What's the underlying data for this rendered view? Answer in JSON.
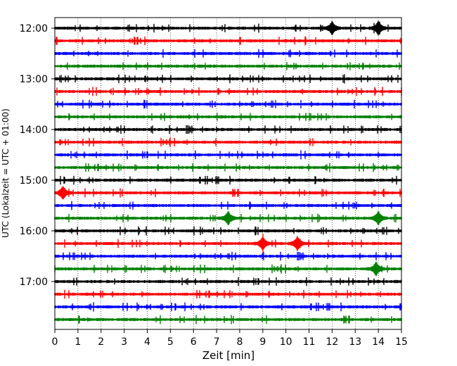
{
  "chart_data": {
    "type": "line",
    "title": "",
    "xlabel": "Zeit  [min]",
    "ylabel": "UTC (Lokalzeit = UTC + 01:00)",
    "x_ticks": [
      0,
      1,
      2,
      3,
      4,
      5,
      6,
      7,
      8,
      9,
      10,
      11,
      12,
      13,
      14,
      15
    ],
    "xlim": [
      0,
      15
    ],
    "grid": "vertical dotted lines at each minute",
    "y_tick_labels": [
      "12:00",
      "13:00",
      "14:00",
      "15:00",
      "16:00",
      "17:00"
    ],
    "trace_interval_minutes": 15,
    "colors": [
      "#000000",
      "#ff0000",
      "#0000ff",
      "#008000"
    ],
    "traces": [
      {
        "start": "12:00",
        "color": "#000000"
      },
      {
        "start": "12:15",
        "color": "#ff0000"
      },
      {
        "start": "12:30",
        "color": "#0000ff"
      },
      {
        "start": "12:45",
        "color": "#008000"
      },
      {
        "start": "13:00",
        "color": "#000000"
      },
      {
        "start": "13:15",
        "color": "#ff0000"
      },
      {
        "start": "13:30",
        "color": "#0000ff"
      },
      {
        "start": "13:45",
        "color": "#008000"
      },
      {
        "start": "14:00",
        "color": "#000000"
      },
      {
        "start": "14:15",
        "color": "#ff0000"
      },
      {
        "start": "14:30",
        "color": "#0000ff"
      },
      {
        "start": "14:45",
        "color": "#008000"
      },
      {
        "start": "15:00",
        "color": "#000000"
      },
      {
        "start": "15:15",
        "color": "#ff0000"
      },
      {
        "start": "15:30",
        "color": "#0000ff"
      },
      {
        "start": "15:45",
        "color": "#008000"
      },
      {
        "start": "16:00",
        "color": "#000000"
      },
      {
        "start": "16:15",
        "color": "#ff0000"
      },
      {
        "start": "16:30",
        "color": "#0000ff"
      },
      {
        "start": "16:45",
        "color": "#008000"
      },
      {
        "start": "17:00",
        "color": "#000000"
      },
      {
        "start": "17:15",
        "color": "#ff0000"
      },
      {
        "start": "17:30",
        "color": "#0000ff"
      },
      {
        "start": "17:45",
        "color": "#008000"
      }
    ],
    "events_minutes": {
      "15:15": [
        0.35
      ],
      "15:45": [
        7.5,
        14.0
      ],
      "16:15": [
        9.0,
        10.5
      ],
      "16:45": [
        13.9
      ],
      "12:00": [
        12.0,
        14.0
      ]
    }
  }
}
